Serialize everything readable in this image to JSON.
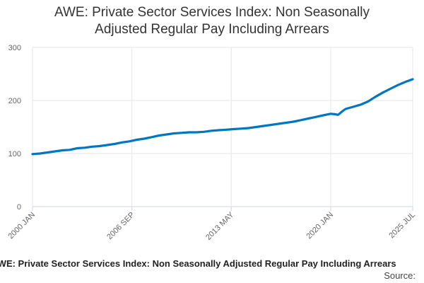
{
  "chart_data": {
    "type": "line",
    "title_line1": "AWE: Private Sector Services Index: Non Seasonally",
    "title_line2": "Adjusted Regular Pay Including Arrears",
    "xlabel": "",
    "ylabel": "",
    "ylim": [
      0,
      300
    ],
    "y_ticks": [
      "0",
      "100",
      "200",
      "300"
    ],
    "x_ticks": [
      {
        "label": "2000 JAN",
        "t": 2000.0
      },
      {
        "label": "2006 SEP",
        "t": 2006.67
      },
      {
        "label": "2013 MAY",
        "t": 2013.33
      },
      {
        "label": "2020 JAN",
        "t": 2020.0
      },
      {
        "label": "2025 JUL",
        "t": 2025.5
      }
    ],
    "x_range": [
      2000.0,
      2025.5
    ],
    "grid": true,
    "color": "#0076c0",
    "series": [
      {
        "name": "AWE: Private Sector Services Index: Non Seasonally Adjusted Regular Pay Including Arrears",
        "points": [
          [
            2000.0,
            99
          ],
          [
            2000.5,
            100
          ],
          [
            2001.0,
            102
          ],
          [
            2001.5,
            104
          ],
          [
            2002.0,
            106
          ],
          [
            2002.5,
            107
          ],
          [
            2003.0,
            110
          ],
          [
            2003.5,
            111
          ],
          [
            2004.0,
            113
          ],
          [
            2004.5,
            114
          ],
          [
            2005.0,
            116
          ],
          [
            2005.5,
            118
          ],
          [
            2006.0,
            121
          ],
          [
            2006.5,
            123
          ],
          [
            2007.0,
            126
          ],
          [
            2007.5,
            128
          ],
          [
            2008.0,
            131
          ],
          [
            2008.5,
            134
          ],
          [
            2009.0,
            136
          ],
          [
            2009.5,
            138
          ],
          [
            2010.0,
            139
          ],
          [
            2010.5,
            140
          ],
          [
            2011.0,
            140
          ],
          [
            2011.5,
            141
          ],
          [
            2012.0,
            143
          ],
          [
            2012.5,
            144
          ],
          [
            2013.0,
            145
          ],
          [
            2013.5,
            146
          ],
          [
            2014.0,
            147
          ],
          [
            2014.5,
            148
          ],
          [
            2015.0,
            150
          ],
          [
            2015.5,
            152
          ],
          [
            2016.0,
            154
          ],
          [
            2016.5,
            156
          ],
          [
            2017.0,
            158
          ],
          [
            2017.5,
            160
          ],
          [
            2018.0,
            163
          ],
          [
            2018.5,
            166
          ],
          [
            2019.0,
            169
          ],
          [
            2019.5,
            172
          ],
          [
            2020.0,
            175
          ],
          [
            2020.3,
            174
          ],
          [
            2020.5,
            173
          ],
          [
            2020.8,
            180
          ],
          [
            2021.0,
            184
          ],
          [
            2021.5,
            188
          ],
          [
            2022.0,
            192
          ],
          [
            2022.5,
            198
          ],
          [
            2023.0,
            207
          ],
          [
            2023.5,
            215
          ],
          [
            2024.0,
            222
          ],
          [
            2024.5,
            229
          ],
          [
            2025.0,
            235
          ],
          [
            2025.5,
            240
          ]
        ]
      }
    ],
    "footer_series": "AWE: Private Sector Services Index: Non Seasonally Adjusted Regular Pay Including Arrears",
    "footer_source": "Source:"
  }
}
